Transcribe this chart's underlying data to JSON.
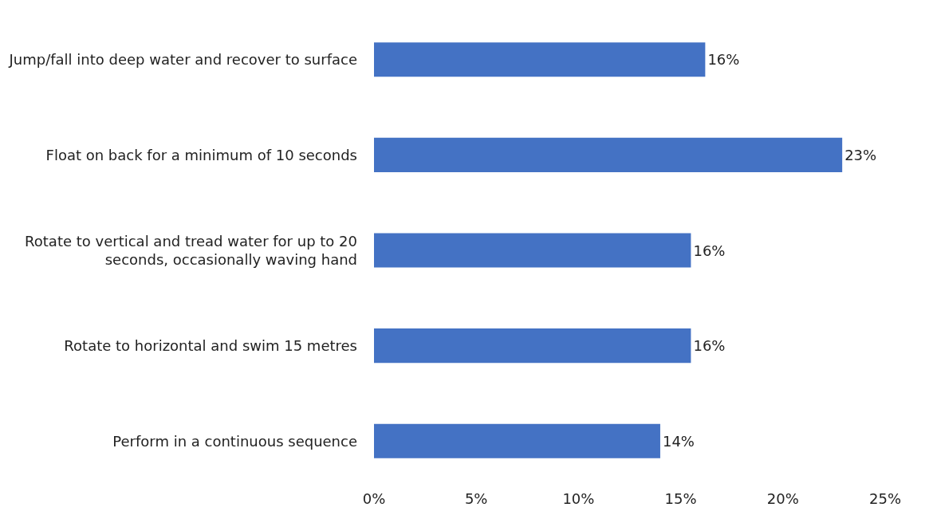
{
  "chart_data": {
    "type": "bar",
    "orientation": "horizontal",
    "categories": [
      "Jump/fall into deep water and recover to surface",
      "Float on back for a minimum of 10 seconds",
      "Rotate to vertical and tread water for up to 20 seconds, occasionally waving hand",
      "Rotate to horizontal and swim 15 metres",
      "Perform in a continuous sequence"
    ],
    "values": [
      16.2,
      22.9,
      15.5,
      15.5,
      14.0
    ],
    "value_labels": [
      "16%",
      "23%",
      "16%",
      "16%",
      "14%"
    ],
    "color": "#4472c4",
    "xlim": [
      0,
      25
    ],
    "xticks": [
      {
        "value": 0,
        "label": "0%"
      },
      {
        "value": 5,
        "label": "5%"
      },
      {
        "value": 10,
        "label": "10%"
      },
      {
        "value": 15,
        "label": "15%"
      },
      {
        "value": 20,
        "label": "20%"
      },
      {
        "value": 25,
        "label": "25%"
      }
    ],
    "grid": false,
    "legend": false
  }
}
